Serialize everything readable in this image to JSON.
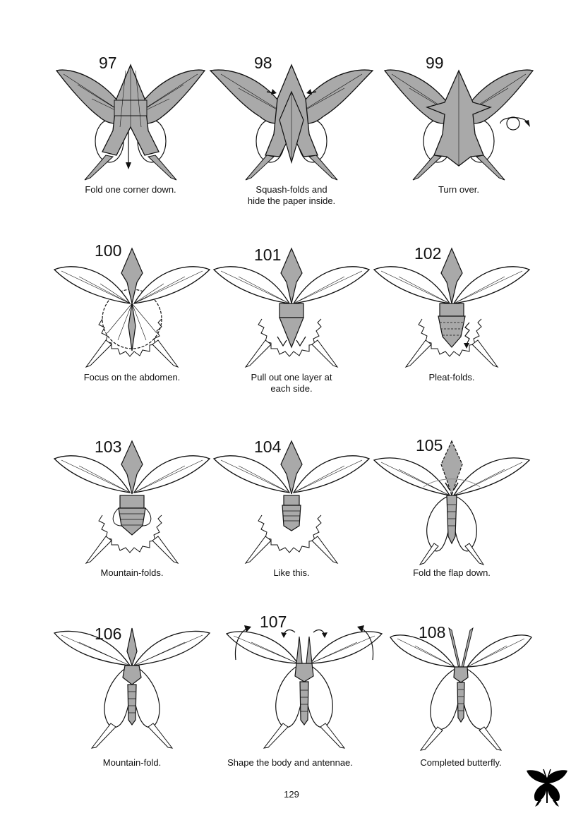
{
  "steps": [
    {
      "number": "97",
      "caption": "Fold one corner down.",
      "style": "gray"
    },
    {
      "number": "98",
      "caption": "Squash-folds and\nhide the paper inside.",
      "style": "gray"
    },
    {
      "number": "99",
      "caption": "Turn over.",
      "style": "gray"
    },
    {
      "number": "100",
      "caption": "Focus on the abdomen.",
      "style": "white-jagged"
    },
    {
      "number": "101",
      "caption": "Pull out one layer at\neach side.",
      "style": "white-jagged"
    },
    {
      "number": "102",
      "caption": "Pleat-folds.",
      "style": "white-jagged"
    },
    {
      "number": "103",
      "caption": "Mountain-folds.",
      "style": "white-jagged"
    },
    {
      "number": "104",
      "caption": "Like this.",
      "style": "white-jagged"
    },
    {
      "number": "105",
      "caption": "Fold the flap down.",
      "style": "white-round"
    },
    {
      "number": "106",
      "caption": "Mountain-fold.",
      "style": "white-round"
    },
    {
      "number": "107",
      "caption": "Shape the body and antennae.",
      "style": "white-round"
    },
    {
      "number": "108",
      "caption": "Completed butterfly.",
      "style": "white-round"
    }
  ],
  "page_number": "129",
  "colors": {
    "paper_gray": "#a9a9a9",
    "paper_white": "#ffffff",
    "line": "#111111"
  },
  "icons": {
    "turn_over": "turn-over-icon",
    "logo": "butterfly-silhouette-icon"
  }
}
